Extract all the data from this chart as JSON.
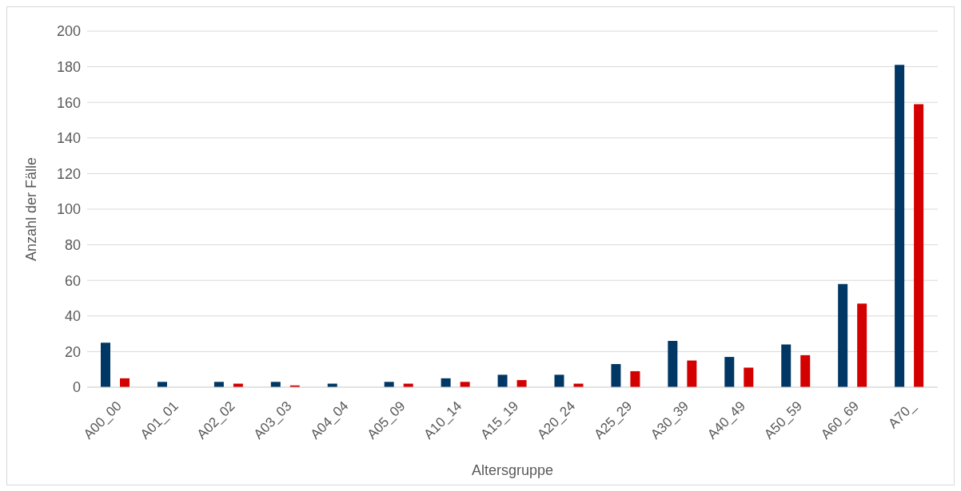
{
  "chart_data": {
    "type": "bar",
    "xlabel": "Altersgruppe",
    "ylabel": "Anzahl der Fälle",
    "categories": [
      "A00_00",
      "A01_01",
      "A02_02",
      "A03_03",
      "A04_04",
      "A05_09",
      "A10_14",
      "A15_19",
      "A20_24",
      "A25_29",
      "A30_39",
      "A40_49",
      "A50_59",
      "A60_69",
      "A70_"
    ],
    "series": [
      {
        "color": "#003764",
        "values": [
          25,
          3,
          3,
          3,
          2,
          3,
          5,
          7,
          7,
          13,
          26,
          17,
          24,
          58,
          181
        ]
      },
      {
        "color": "#d40000",
        "values": [
          5,
          0,
          2,
          1,
          0,
          2,
          3,
          4,
          2,
          9,
          15,
          11,
          18,
          47,
          159
        ]
      }
    ],
    "ylim": [
      0,
      200
    ],
    "yticks": [
      0,
      20,
      40,
      60,
      80,
      100,
      120,
      140,
      160,
      180,
      200
    ],
    "grid": "y",
    "legend": false
  }
}
